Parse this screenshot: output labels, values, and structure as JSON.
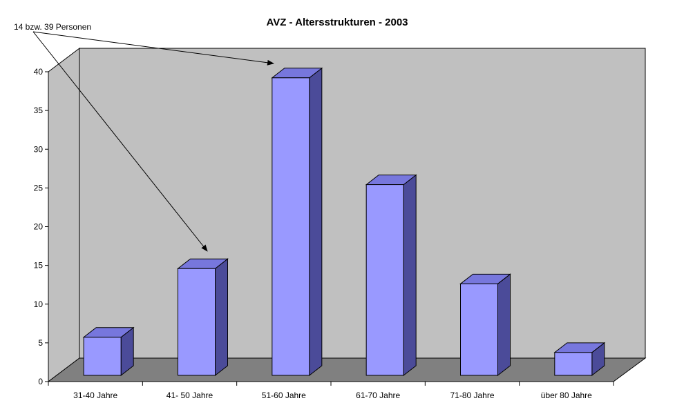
{
  "chart_data": {
    "type": "bar",
    "title": "AVZ - Altersstrukturen - 2003",
    "categories": [
      "31-40 Jahre",
      "41- 50 Jahre",
      "51-60 Jahre",
      "61-70 Jahre",
      "71-80 Jahre",
      "über 80 Jahre"
    ],
    "values": [
      5,
      14,
      39,
      25,
      12,
      3
    ],
    "ylim": [
      0,
      40
    ],
    "yticks": [
      "0",
      "5",
      "10",
      "15",
      "20",
      "25",
      "30",
      "35",
      "40"
    ],
    "grid": false,
    "annotation": {
      "text": "14 bzw. 39 Personen",
      "points_to": [
        "41- 50 Jahre",
        "51-60 Jahre"
      ]
    },
    "colors": {
      "bar_front": "#9999ff",
      "bar_top": "#7777dd",
      "bar_side": "#4b4b99",
      "wall": "#c0c0c0",
      "floor": "#808080"
    }
  }
}
